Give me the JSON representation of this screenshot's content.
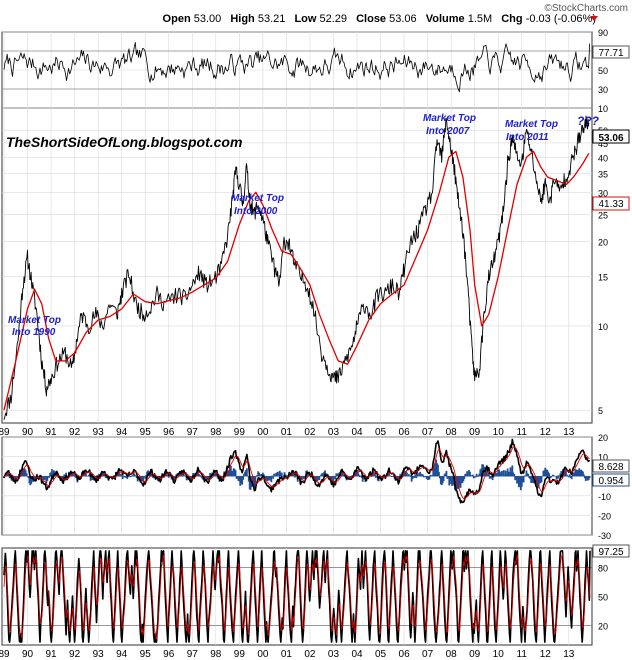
{
  "header": {
    "logo": "©StockCharts.com",
    "open_label": "Open",
    "open": "53.00",
    "high_label": "High",
    "high": "53.21",
    "low_label": "Low",
    "low": "52.29",
    "close_label": "Close",
    "close": "53.06",
    "volume_label": "Volume",
    "volume": "1.5M",
    "chg_label": "Chg",
    "chg": "-0.03 (-0.06%)",
    "down_color": "#d01010"
  },
  "watermark": "TheShortSideOfLong.blogspot.com",
  "annotations": [
    {
      "text1": "Market Top",
      "text2": "Into 1990"
    },
    {
      "text1": "Market Top",
      "text2": "Into 2000"
    },
    {
      "text1": "Market Top",
      "text2": "Into 2007"
    },
    {
      "text1": "Market Top",
      "text2": "Into 2011"
    },
    {
      "text1": "???",
      "text2": ""
    }
  ],
  "colors": {
    "price": "#000000",
    "ma": "#e00000",
    "histogram": "#1f4e96",
    "grid": "#d9d9d9",
    "frame": "#333333"
  },
  "chart_data": [
    {
      "type": "line",
      "panel": "rsi",
      "title": "RSI",
      "x_range": [
        1989.0,
        2013.9
      ],
      "ylim": [
        10,
        90
      ],
      "ticks": [
        10,
        30,
        50,
        70,
        90
      ],
      "tick_labels": [
        "10",
        "30",
        "50",
        "70",
        "90"
      ],
      "value_label": "77.71",
      "last_value": 77.71
    },
    {
      "type": "line",
      "panel": "price",
      "title": "Price with moving average",
      "x_range": [
        1989.0,
        2013.9
      ],
      "ylim_log": [
        4.5,
        60
      ],
      "ticks": [
        5,
        10,
        15,
        20,
        25,
        30,
        35,
        40,
        45,
        50
      ],
      "tick_labels": [
        "5",
        "10",
        "15",
        "20",
        "25",
        "30",
        "35",
        "40",
        "45",
        "50"
      ],
      "close_label": "53.06",
      "ma_label": "41.33",
      "series": [
        {
          "name": "Price",
          "points": [
            [
              1989.0,
              4.8
            ],
            [
              1989.3,
              5.6
            ],
            [
              1989.6,
              9
            ],
            [
              1989.8,
              14
            ],
            [
              1990.0,
              17.5
            ],
            [
              1990.2,
              14
            ],
            [
              1990.4,
              11
            ],
            [
              1990.6,
              7.5
            ],
            [
              1990.8,
              6
            ],
            [
              1991.0,
              6.5
            ],
            [
              1991.3,
              7.5
            ],
            [
              1991.6,
              8
            ],
            [
              1991.9,
              7
            ],
            [
              1992.1,
              9
            ],
            [
              1992.3,
              11
            ],
            [
              1992.6,
              10
            ],
            [
              1992.9,
              11
            ],
            [
              1993.2,
              10
            ],
            [
              1993.5,
              12
            ],
            [
              1993.8,
              11
            ],
            [
              1994.0,
              13
            ],
            [
              1994.3,
              15.5
            ],
            [
              1994.6,
              12
            ],
            [
              1994.9,
              11
            ],
            [
              1995.2,
              11.5
            ],
            [
              1995.5,
              13
            ],
            [
              1995.8,
              12
            ],
            [
              1996.1,
              12.5
            ],
            [
              1996.4,
              13
            ],
            [
              1996.7,
              12.5
            ],
            [
              1997.0,
              14
            ],
            [
              1997.3,
              15.5
            ],
            [
              1997.6,
              14
            ],
            [
              1997.9,
              14.5
            ],
            [
              1998.2,
              16
            ],
            [
              1998.5,
              21
            ],
            [
              1998.7,
              28
            ],
            [
              1998.85,
              36
            ],
            [
              1999.0,
              32
            ],
            [
              1999.15,
              27
            ],
            [
              1999.3,
              37
            ],
            [
              1999.45,
              28
            ],
            [
              1999.6,
              25
            ],
            [
              1999.8,
              27
            ],
            [
              2000.0,
              24
            ],
            [
              2000.2,
              20
            ],
            [
              2000.5,
              16
            ],
            [
              2000.7,
              14
            ],
            [
              2000.9,
              20
            ],
            [
              2001.1,
              20
            ],
            [
              2001.3,
              17
            ],
            [
              2001.6,
              15
            ],
            [
              2001.9,
              14
            ],
            [
              2002.2,
              11
            ],
            [
              2002.5,
              8
            ],
            [
              2002.8,
              7
            ],
            [
              2003.0,
              6.5
            ],
            [
              2003.2,
              6.5
            ],
            [
              2003.5,
              7.5
            ],
            [
              2003.8,
              8.5
            ],
            [
              2004.0,
              10
            ],
            [
              2004.3,
              12
            ],
            [
              2004.6,
              11
            ],
            [
              2004.9,
              13
            ],
            [
              2005.2,
              13
            ],
            [
              2005.5,
              14
            ],
            [
              2005.8,
              13
            ],
            [
              2006.0,
              16
            ],
            [
              2006.3,
              20
            ],
            [
              2006.6,
              22
            ],
            [
              2006.9,
              26
            ],
            [
              2007.2,
              30
            ],
            [
              2007.4,
              46
            ],
            [
              2007.6,
              40
            ],
            [
              2007.8,
              55
            ],
            [
              2007.95,
              45
            ],
            [
              2008.1,
              38
            ],
            [
              2008.3,
              28
            ],
            [
              2008.5,
              22
            ],
            [
              2008.7,
              14
            ],
            [
              2008.85,
              9
            ],
            [
              2009.0,
              6.5
            ],
            [
              2009.2,
              7
            ],
            [
              2009.4,
              11
            ],
            [
              2009.6,
              15
            ],
            [
              2009.8,
              17
            ],
            [
              2010.0,
              20
            ],
            [
              2010.2,
              25
            ],
            [
              2010.4,
              38
            ],
            [
              2010.6,
              47
            ],
            [
              2010.8,
              40
            ],
            [
              2011.0,
              38
            ],
            [
              2011.2,
              50
            ],
            [
              2011.4,
              42
            ],
            [
              2011.6,
              34
            ],
            [
              2011.8,
              28
            ],
            [
              2012.0,
              32
            ],
            [
              2012.2,
              28
            ],
            [
              2012.4,
              34
            ],
            [
              2012.6,
              30
            ],
            [
              2012.8,
              33
            ],
            [
              2013.0,
              36
            ],
            [
              2013.2,
              40
            ],
            [
              2013.4,
              46
            ],
            [
              2013.6,
              50
            ],
            [
              2013.75,
              53
            ],
            [
              2013.85,
              53.06
            ]
          ]
        },
        {
          "name": "Moving average",
          "points": [
            [
              1989.0,
              5
            ],
            [
              1989.5,
              7.5
            ],
            [
              1990.0,
              11.5
            ],
            [
              1990.3,
              13.5
            ],
            [
              1990.6,
              12
            ],
            [
              1990.9,
              9
            ],
            [
              1991.2,
              7.5
            ],
            [
              1991.6,
              7.5
            ],
            [
              1992.0,
              8
            ],
            [
              1992.5,
              9.5
            ],
            [
              1993.0,
              10.5
            ],
            [
              1993.5,
              10.8
            ],
            [
              1994.0,
              11.5
            ],
            [
              1994.5,
              13
            ],
            [
              1995.0,
              12.2
            ],
            [
              1995.5,
              12
            ],
            [
              1996.0,
              12.3
            ],
            [
              1996.5,
              12.6
            ],
            [
              1997.0,
              13.2
            ],
            [
              1997.5,
              14
            ],
            [
              1998.0,
              14.8
            ],
            [
              1998.5,
              17
            ],
            [
              1999.0,
              23
            ],
            [
              1999.4,
              28
            ],
            [
              1999.7,
              30
            ],
            [
              2000.0,
              27
            ],
            [
              2000.4,
              22
            ],
            [
              2000.8,
              18.5
            ],
            [
              2001.2,
              18
            ],
            [
              2001.6,
              16
            ],
            [
              2002.0,
              14
            ],
            [
              2002.4,
              11
            ],
            [
              2002.8,
              9
            ],
            [
              2003.2,
              7.5
            ],
            [
              2003.6,
              7.3
            ],
            [
              2004.0,
              8.5
            ],
            [
              2004.5,
              10.5
            ],
            [
              2005.0,
              12
            ],
            [
              2005.5,
              13
            ],
            [
              2006.0,
              14
            ],
            [
              2006.5,
              17.5
            ],
            [
              2007.0,
              22
            ],
            [
              2007.5,
              30
            ],
            [
              2007.9,
              40
            ],
            [
              2008.2,
              42
            ],
            [
              2008.5,
              34
            ],
            [
              2008.8,
              22
            ],
            [
              2009.0,
              14
            ],
            [
              2009.3,
              10
            ],
            [
              2009.6,
              11
            ],
            [
              2010.0,
              15
            ],
            [
              2010.4,
              22
            ],
            [
              2010.8,
              32
            ],
            [
              2011.2,
              40
            ],
            [
              2011.5,
              42
            ],
            [
              2011.8,
              37
            ],
            [
              2012.1,
              34
            ],
            [
              2012.5,
              33
            ],
            [
              2012.9,
              32
            ],
            [
              2013.2,
              34
            ],
            [
              2013.6,
              38
            ],
            [
              2013.85,
              41.33
            ]
          ]
        }
      ]
    },
    {
      "type": "line",
      "panel": "macd",
      "title": "MACD",
      "x_range": [
        1989.0,
        2013.9
      ],
      "ylim": [
        -30,
        20
      ],
      "ticks": [
        -30,
        -20,
        -10,
        0,
        10,
        20
      ],
      "tick_labels": [
        "-30",
        "-20",
        "-10",
        "0",
        "10",
        "20"
      ],
      "macd_label": "8.628",
      "hist_label": "0.954"
    },
    {
      "type": "line",
      "panel": "stochastic",
      "title": "Stochastic",
      "x_range": [
        1989.0,
        2013.9
      ],
      "ylim": [
        0,
        100
      ],
      "ticks": [
        20,
        50,
        80
      ],
      "tick_labels": [
        "20",
        "50",
        "80"
      ],
      "value_label": "97.25"
    },
    {
      "type": "axis",
      "x_ticks": [
        1989,
        1990,
        1991,
        1992,
        1993,
        1994,
        1995,
        1996,
        1997,
        1998,
        1999,
        2000,
        2001,
        2002,
        2003,
        2004,
        2005,
        2006,
        2007,
        2008,
        2009,
        2010,
        2011,
        2012,
        2013
      ],
      "x_labels": [
        "89",
        "90",
        "91",
        "92",
        "93",
        "94",
        "95",
        "96",
        "97",
        "98",
        "99",
        "00",
        "01",
        "02",
        "03",
        "04",
        "05",
        "06",
        "07",
        "08",
        "09",
        "10",
        "11",
        "12",
        "13"
      ]
    }
  ]
}
